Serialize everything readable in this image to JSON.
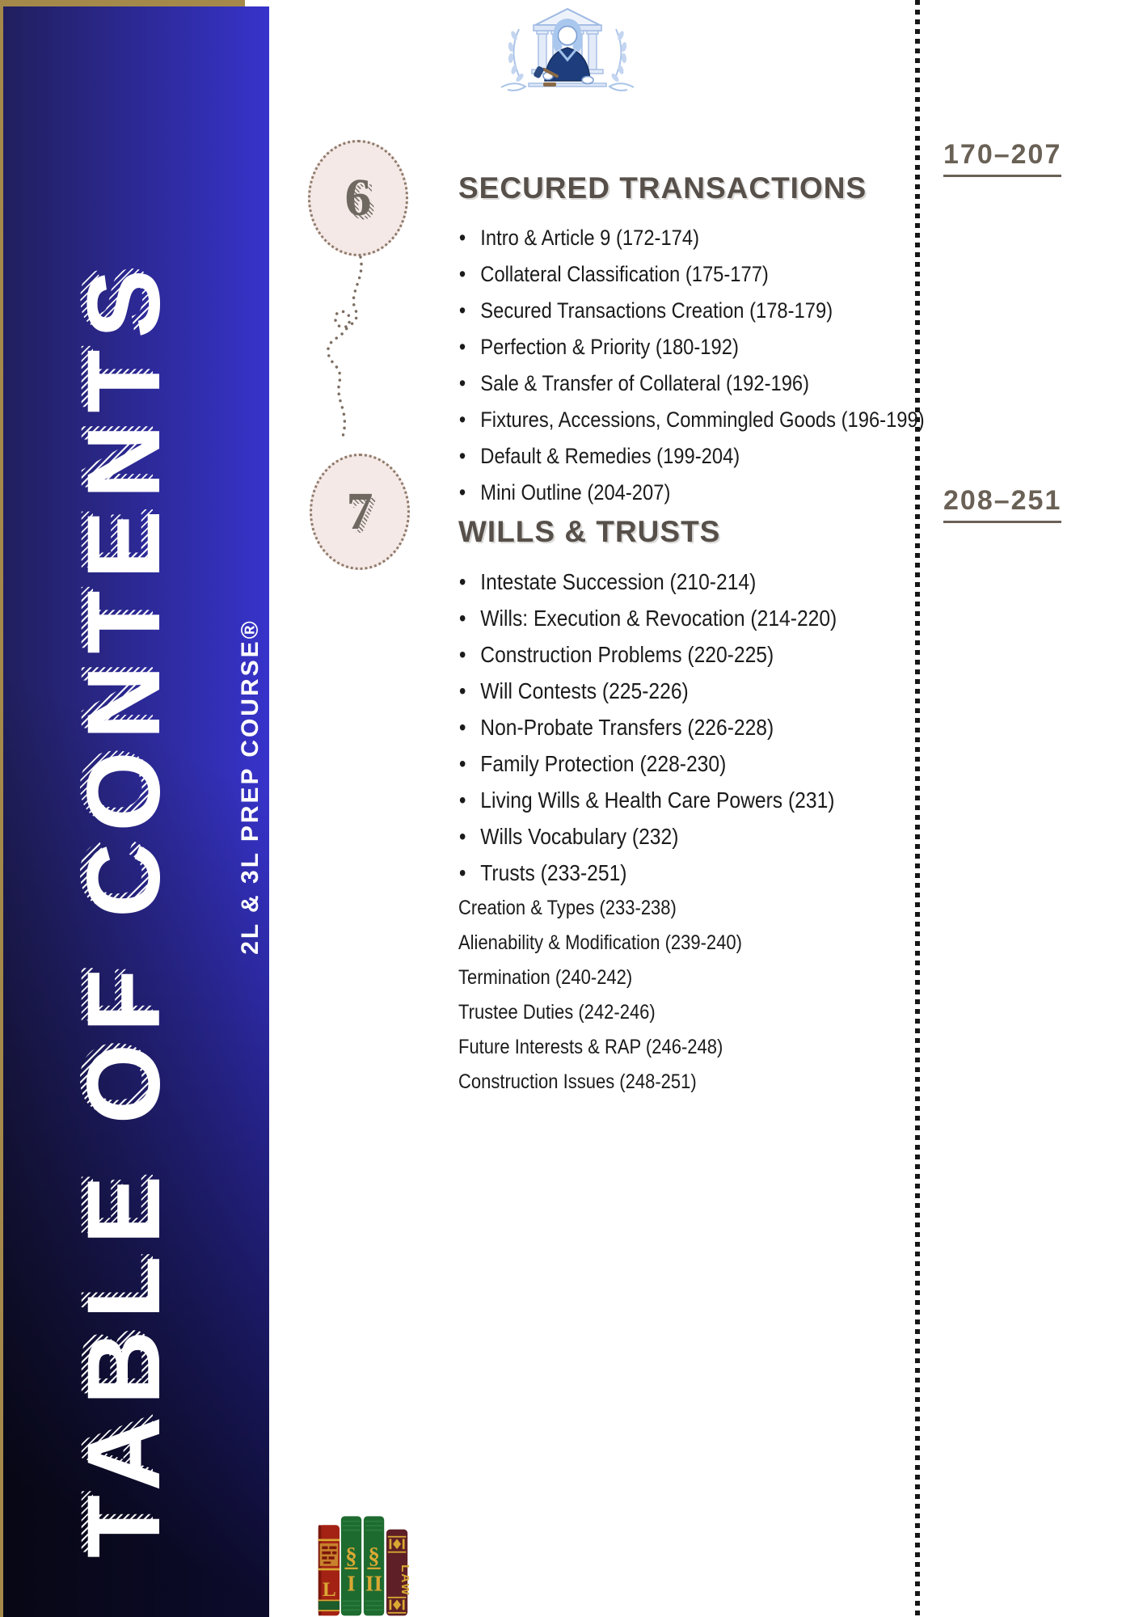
{
  "page": {
    "vertical_title": "TABLE OF CONTENTS",
    "vertical_subtitle": "2L & 3L PREP COURSE®"
  },
  "sections": [
    {
      "number": "6",
      "title": "SECURED TRANSACTIONS",
      "page_range": "170–207",
      "items": [
        "Intro & Article 9 (172-174)",
        "Collateral Classification (175-177)",
        "Secured Transactions Creation (178-179)",
        "Perfection & Priority (180-192)",
        "Sale & Transfer of Collateral (192-196)",
        "Fixtures, Accessions, Commingled Goods (196-199)",
        "Default & Remedies (199-204)",
        "Mini Outline (204-207)"
      ]
    },
    {
      "number": "7",
      "title": "WILLS & TRUSTS",
      "page_range": "208–251",
      "items": [
        "Intestate Succession (210-214)",
        "Wills: Execution & Revocation (214-220)",
        "Construction Problems (220-225)",
        "Will Contests (225-226)",
        "Non-Probate Transfers (226-228)",
        "Family Protection (228-230)",
        "Living Wills & Health Care Powers (231)",
        "Wills Vocabulary (232)",
        "Trusts (233-251)"
      ],
      "sub_items": [
        "Creation & Types (233-238)",
        "Alienability & Modification (239-240)",
        "Termination (240-242)",
        "Trustee Duties (242-246)",
        "Future Interests & RAP (246-248)",
        "Construction Issues (248-251)"
      ]
    }
  ],
  "icons": {
    "logo": "judge-courthouse-logo",
    "badge_connector": "dotted-squiggle",
    "books": "law-books-icon",
    "bullet": "•"
  },
  "colors": {
    "gold": "#a5894a",
    "sidebar_blue": "#3733cb",
    "sidebar_dark": "#211f5e",
    "heading_brown": "#57504a",
    "range_brown": "#6a6156",
    "badge_fill": "#f4e9e6",
    "badge_border": "#8f7a6b",
    "text": "#1b1b1b",
    "logo_light_blue": "#b7cbe9",
    "logo_navy": "#1e3d7d",
    "book_red": "#a32214",
    "book_green": "#1e6b30",
    "book_maroon": "#5e2026",
    "book_gold": "#d9a833"
  }
}
